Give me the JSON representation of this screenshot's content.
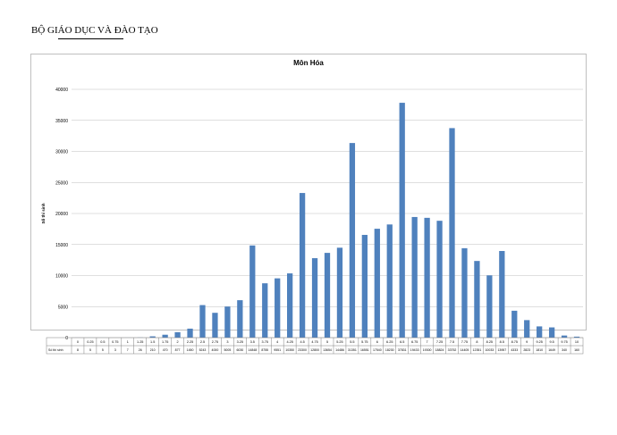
{
  "header": {
    "text": "BỘ GIÁO DỤC VÀ ĐÀO TẠO"
  },
  "chart_data": {
    "type": "bar",
    "title": "Môn Hóa",
    "ylabel": "Số thí sinh",
    "ylim": [
      0,
      40000
    ],
    "yticks": [
      0,
      5000,
      10000,
      15000,
      20000,
      25000,
      30000,
      35000,
      40000
    ],
    "grid": true,
    "bar_color": "#4f81bd",
    "table_row_label": "Số thí sinh",
    "categories": [
      "0",
      "0.25",
      "0.5",
      "0.75",
      "1",
      "1.25",
      "1.5",
      "1.75",
      "2",
      "2.25",
      "2.5",
      "2.75",
      "3",
      "3.25",
      "3.5",
      "3.75",
      "4",
      "4.25",
      "4.5",
      "4.75",
      "5",
      "5.25",
      "5.5",
      "5.75",
      "6",
      "6.25",
      "6.5",
      "6.75",
      "7",
      "7.25",
      "7.5",
      "7.75",
      "8",
      "8.25",
      "8.5",
      "8.75",
      "9",
      "9.25",
      "9.5",
      "9.75",
      "10"
    ],
    "values": [
      8,
      5,
      5,
      3,
      7,
      26,
      210,
      470,
      877,
      1450,
      5243,
      4000,
      5005,
      6030,
      14848,
      8755,
      9551,
      10350,
      23300,
      12800,
      13654,
      14486,
      31351,
      16551,
      17540,
      18230,
      37831,
      19433,
      19300,
      18824,
      33752,
      14405,
      12351,
      10033,
      13957,
      4333,
      2823,
      1810,
      1649,
      340,
      160
    ]
  }
}
